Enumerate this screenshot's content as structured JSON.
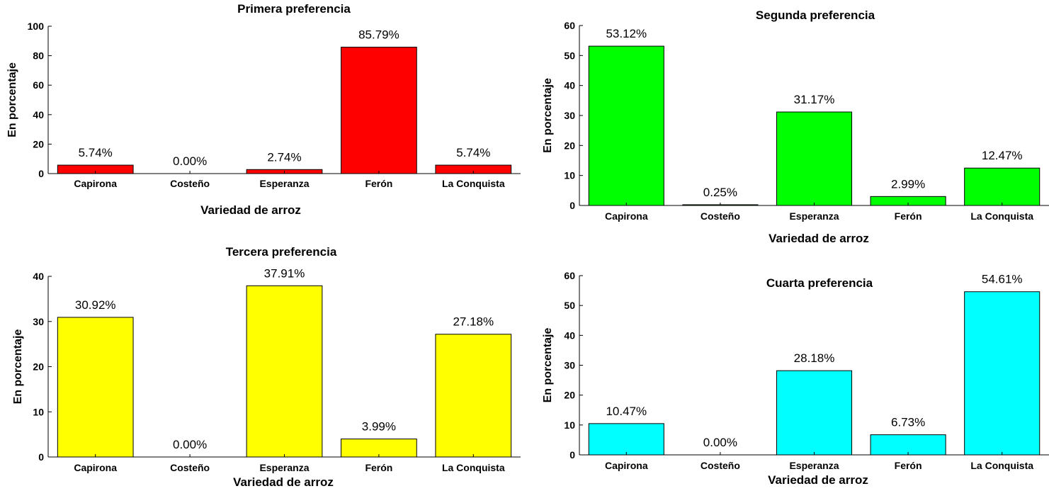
{
  "chart_data": [
    {
      "type": "bar",
      "title": "Primera preferencia",
      "xlabel": "Variedad de arroz",
      "ylabel": "En porcentaje",
      "categories": [
        "Capirona",
        "Costeño",
        "Esperanza",
        "Ferón",
        "La Conquista"
      ],
      "values": [
        5.74,
        0.0,
        2.74,
        85.79,
        5.74
      ],
      "data_labels": [
        "5.74%",
        "0.00%",
        "2.74%",
        "85.79%",
        "5.74%"
      ],
      "ylim": [
        0,
        100
      ],
      "yticks": [
        "0",
        "20",
        "40",
        "60",
        "80",
        "100"
      ],
      "color": "#ff0000",
      "grid": false
    },
    {
      "type": "bar",
      "title": "Segunda preferencia",
      "xlabel": "Variedad de arroz",
      "ylabel": "En porcentaje",
      "categories": [
        "Capirona",
        "Costeño",
        "Esperanza",
        "Ferón",
        "La Conquista"
      ],
      "values": [
        53.12,
        0.25,
        31.17,
        2.99,
        12.47
      ],
      "data_labels": [
        "53.12%",
        "0.25%",
        "31.17%",
        "2.99%",
        "12.47%"
      ],
      "ylim": [
        0,
        60
      ],
      "yticks": [
        "0",
        "10",
        "20",
        "30",
        "40",
        "50",
        "60"
      ],
      "color": "#00ff00",
      "grid": false
    },
    {
      "type": "bar",
      "title": "Tercera preferencia",
      "xlabel": "Variedad de arroz",
      "ylabel": "En porcentaje",
      "categories": [
        "Capirona",
        "Costeño",
        "Esperanza",
        "Ferón",
        "La Conquista"
      ],
      "values": [
        30.92,
        0.0,
        37.91,
        3.99,
        27.18
      ],
      "data_labels": [
        "30.92%",
        "0.00%",
        "37.91%",
        "3.99%",
        "27.18%"
      ],
      "ylim": [
        0,
        40
      ],
      "yticks": [
        "0",
        "10",
        "20",
        "30",
        "40"
      ],
      "color": "#ffff00",
      "grid": false
    },
    {
      "type": "bar",
      "title": "Cuarta preferencia",
      "xlabel": "Variedad de arroz",
      "ylabel": "En porcentaje",
      "categories": [
        "Capirona",
        "Costeño",
        "Esperanza",
        "Ferón",
        "La Conquista"
      ],
      "values": [
        10.47,
        0.0,
        28.18,
        6.73,
        54.61
      ],
      "data_labels": [
        "10.47%",
        "0.00%",
        "28.18%",
        "6.73%",
        "54.61%"
      ],
      "ylim": [
        0,
        60
      ],
      "yticks": [
        "0",
        "10",
        "20",
        "30",
        "40",
        "50",
        "60"
      ],
      "color": "#00ffff",
      "grid": false
    }
  ]
}
